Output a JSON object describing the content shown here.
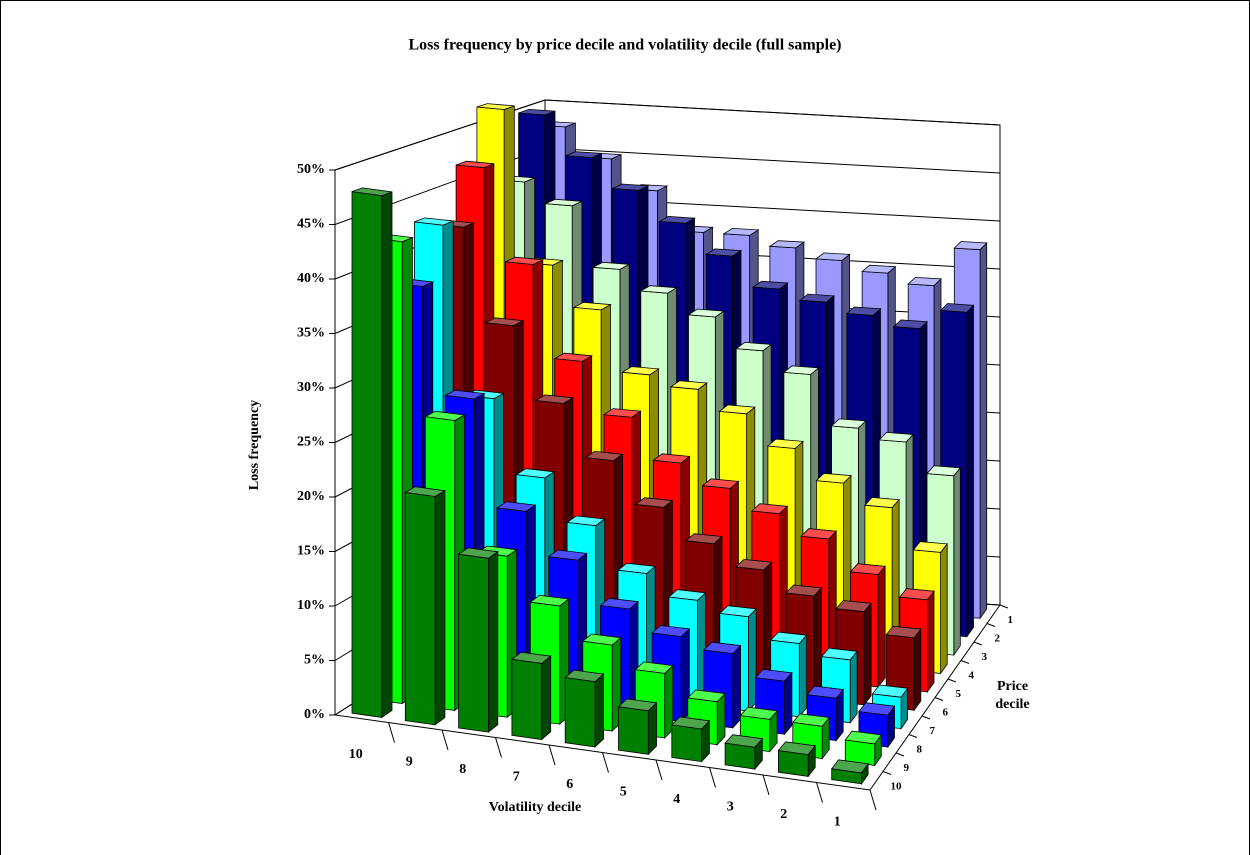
{
  "chart_data": {
    "type": "bar3d",
    "title": "Loss frequency by price decile and volatility decile (full sample)",
    "y_label": "Loss frequency",
    "x_label": "Volatility decile",
    "z_label": "Price decile",
    "categories": [
      "10",
      "9",
      "8",
      "7",
      "6",
      "5",
      "4",
      "3",
      "2",
      "1"
    ],
    "series": [
      {
        "name": "1",
        "color": "#9999ff",
        "values": [
          48,
          45,
          42,
          38,
          38,
          37,
          36,
          35,
          34,
          38
        ]
      },
      {
        "name": "2",
        "color": "#000080",
        "values": [
          50,
          46,
          43,
          40,
          37,
          34,
          33,
          32,
          31,
          33
        ]
      },
      {
        "name": "3",
        "color": "#ccffcc",
        "values": [
          44,
          42,
          36,
          34,
          32,
          29,
          27,
          22,
          21,
          18
        ]
      },
      {
        "name": "4",
        "color": "#ffff00",
        "values": [
          52,
          37,
          33,
          27,
          26,
          24,
          21,
          18,
          16,
          12
        ]
      },
      {
        "name": "5",
        "color": "#ff0000",
        "values": [
          47,
          38,
          29,
          24,
          20,
          18,
          16,
          14,
          11,
          9
        ]
      },
      {
        "name": "6",
        "color": "#800000",
        "values": [
          42,
          33,
          26,
          21,
          17,
          14,
          12,
          10,
          9,
          7
        ]
      },
      {
        "name": "7",
        "color": "#00ffff",
        "values": [
          43,
          27,
          20,
          16,
          12,
          10,
          9,
          7,
          6,
          3
        ]
      },
      {
        "name": "8",
        "color": "#0000ff",
        "values": [
          38,
          28,
          18,
          14,
          10,
          8,
          7,
          5,
          4,
          3
        ]
      },
      {
        "name": "9",
        "color": "#00ff00",
        "values": [
          43,
          27,
          15,
          11,
          8,
          6,
          4,
          3,
          3,
          2
        ]
      },
      {
        "name": "10",
        "color": "#008000",
        "values": [
          48,
          21,
          16,
          7,
          6,
          4,
          3,
          2,
          2,
          1
        ]
      }
    ],
    "ylim": [
      0,
      50
    ],
    "yticks": [
      {
        "value": 0,
        "label": "0%"
      },
      {
        "value": 5,
        "label": "5%"
      },
      {
        "value": 10,
        "label": "10%"
      },
      {
        "value": 15,
        "label": "15%"
      },
      {
        "value": 20,
        "label": "20%"
      },
      {
        "value": 25,
        "label": "25%"
      },
      {
        "value": 30,
        "label": "30%"
      },
      {
        "value": 35,
        "label": "35%"
      },
      {
        "value": 40,
        "label": "40%"
      },
      {
        "value": 45,
        "label": "45%"
      },
      {
        "value": 50,
        "label": "50%"
      }
    ],
    "grid": true
  }
}
